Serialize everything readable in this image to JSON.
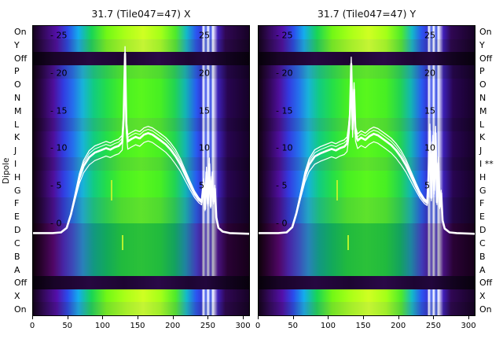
{
  "figure": {
    "dipole_axis_label": "Dipole",
    "left_row_labels": [
      "On",
      "Y",
      "Off",
      "P",
      "O",
      "N",
      "M",
      "L",
      "K",
      "J",
      "I",
      "H",
      "G",
      "F",
      "E",
      "D",
      "C",
      "B",
      "A",
      "Off",
      "X",
      "On"
    ],
    "right_row_labels": [
      "On",
      "Y",
      "Off",
      "P",
      "O",
      "N",
      "M",
      "L",
      "K",
      "J",
      "I **",
      "H",
      "G",
      "F",
      "E",
      "D",
      "C",
      "B",
      "A",
      "Off",
      "X",
      "On"
    ]
  },
  "chart_data": [
    {
      "type": "heatmap",
      "title": "31.7 (Tile047=47) X",
      "x_range": [
        0,
        310
      ],
      "x_ticks": [
        0,
        50,
        100,
        150,
        200,
        250,
        300
      ],
      "y_ticks": [
        {
          "value": 25,
          "left_label": "- 25",
          "right_label": "25"
        },
        {
          "value": 20,
          "left_label": "- 20",
          "right_label": "20"
        },
        {
          "value": 15,
          "left_label": "- 15",
          "right_label": "15"
        },
        {
          "value": 10,
          "left_label": "- 10",
          "right_label": "10"
        },
        {
          "value": 5,
          "left_label": "- 5",
          "right_label": "5"
        },
        {
          "value": 0,
          "left_label": "- 0",
          "right_label": ""
        }
      ],
      "rows": [
        {
          "label": "On",
          "band": "bright",
          "tint": "a"
        },
        {
          "label": "Y",
          "band": "bright",
          "tint": "b"
        },
        {
          "label": "Off",
          "band": "dark",
          "tint": "b"
        },
        {
          "label": "P",
          "band": "main",
          "tint": "b"
        },
        {
          "label": "O",
          "band": "main",
          "tint": "a"
        },
        {
          "label": "N",
          "band": "main",
          "tint": "a"
        },
        {
          "label": "M",
          "band": "main",
          "tint": "a"
        },
        {
          "label": "L",
          "band": "main",
          "tint": "b"
        },
        {
          "label": "K",
          "band": "main",
          "tint": "a"
        },
        {
          "label": "J",
          "band": "main",
          "tint": "a"
        },
        {
          "label": "I",
          "band": "main",
          "tint": "b"
        },
        {
          "label": "H",
          "band": "main",
          "tint": "a"
        },
        {
          "label": "G",
          "band": "main",
          "tint": "a"
        },
        {
          "label": "F",
          "band": "main",
          "tint": "b"
        },
        {
          "label": "E",
          "band": "main",
          "tint": "b"
        },
        {
          "label": "D",
          "band": "main",
          "tint": "c"
        },
        {
          "label": "C",
          "band": "main",
          "tint": "c"
        },
        {
          "label": "B",
          "band": "main",
          "tint": "c"
        },
        {
          "label": "A",
          "band": "main",
          "tint": "c"
        },
        {
          "label": "Off",
          "band": "dark",
          "tint": "b"
        },
        {
          "label": "X",
          "band": "bright",
          "tint": "a"
        },
        {
          "label": "On",
          "band": "bright",
          "tint": "b"
        }
      ],
      "artifacts": [
        {
          "x": 111,
          "top": 0.53,
          "bottom": 0.6
        },
        {
          "x": 126,
          "top": 0.72,
          "bottom": 0.77
        }
      ],
      "line": {
        "color": "#ffffff",
        "points": [
          [
            0,
            -1.3
          ],
          [
            28,
            -1.3
          ],
          [
            40,
            -1.2
          ],
          [
            48,
            -0.6
          ],
          [
            54,
            1.2
          ],
          [
            60,
            3.6
          ],
          [
            66,
            6.0
          ],
          [
            72,
            7.6
          ],
          [
            80,
            8.8
          ],
          [
            88,
            9.4
          ],
          [
            96,
            9.7
          ],
          [
            104,
            10.0
          ],
          [
            110,
            9.8
          ],
          [
            116,
            10.1
          ],
          [
            122,
            10.3
          ],
          [
            127,
            10.8
          ],
          [
            129,
            14.0
          ],
          [
            131,
            22.6
          ],
          [
            133,
            13.0
          ],
          [
            135,
            10.9
          ],
          [
            140,
            11.2
          ],
          [
            146,
            11.5
          ],
          [
            152,
            11.3
          ],
          [
            158,
            11.8
          ],
          [
            164,
            12.0
          ],
          [
            170,
            11.8
          ],
          [
            176,
            11.4
          ],
          [
            182,
            11.0
          ],
          [
            189,
            10.5
          ],
          [
            196,
            9.8
          ],
          [
            203,
            8.9
          ],
          [
            210,
            7.8
          ],
          [
            217,
            6.4
          ],
          [
            224,
            5.0
          ],
          [
            230,
            3.9
          ],
          [
            236,
            3.1
          ],
          [
            240,
            2.8
          ],
          [
            243,
            5.4
          ],
          [
            245,
            1.9
          ],
          [
            247,
            6.8
          ],
          [
            249,
            2.6
          ],
          [
            251,
            7.9
          ],
          [
            253,
            2.3
          ],
          [
            255,
            6.2
          ],
          [
            257,
            2.9
          ],
          [
            259,
            4.6
          ],
          [
            261,
            0.8
          ],
          [
            264,
            -0.6
          ],
          [
            270,
            -1.1
          ],
          [
            280,
            -1.3
          ],
          [
            310,
            -1.4
          ]
        ]
      }
    },
    {
      "type": "heatmap",
      "title": "31.7 (Tile047=47) Y",
      "x_range": [
        0,
        310
      ],
      "x_ticks": [
        0,
        50,
        100,
        150,
        200,
        250,
        300
      ],
      "y_ticks": [
        {
          "value": 25,
          "left_label": "- 25",
          "right_label": "25"
        },
        {
          "value": 20,
          "left_label": "- 20",
          "right_label": "20"
        },
        {
          "value": 15,
          "left_label": "- 15",
          "right_label": "15"
        },
        {
          "value": 10,
          "left_label": "- 10",
          "right_label": "10"
        },
        {
          "value": 5,
          "left_label": "- 5",
          "right_label": "5"
        },
        {
          "value": 0,
          "left_label": "- 0",
          "right_label": ""
        }
      ],
      "rows": [
        {
          "label": "On",
          "band": "bright",
          "tint": "a"
        },
        {
          "label": "Y",
          "band": "bright",
          "tint": "b"
        },
        {
          "label": "Off",
          "band": "dark",
          "tint": "b"
        },
        {
          "label": "P",
          "band": "main",
          "tint": "b"
        },
        {
          "label": "O",
          "band": "main",
          "tint": "a"
        },
        {
          "label": "N",
          "band": "main",
          "tint": "a"
        },
        {
          "label": "M",
          "band": "main",
          "tint": "a"
        },
        {
          "label": "L",
          "band": "main",
          "tint": "b"
        },
        {
          "label": "K",
          "band": "main",
          "tint": "a"
        },
        {
          "label": "J",
          "band": "main",
          "tint": "a"
        },
        {
          "label": "I",
          "band": "main",
          "tint": "b"
        },
        {
          "label": "H",
          "band": "main",
          "tint": "a"
        },
        {
          "label": "G",
          "band": "main",
          "tint": "a"
        },
        {
          "label": "F",
          "band": "main",
          "tint": "b"
        },
        {
          "label": "E",
          "band": "main",
          "tint": "b"
        },
        {
          "label": "D",
          "band": "main",
          "tint": "c"
        },
        {
          "label": "C",
          "band": "main",
          "tint": "c"
        },
        {
          "label": "B",
          "band": "main",
          "tint": "c"
        },
        {
          "label": "A",
          "band": "main",
          "tint": "c"
        },
        {
          "label": "Off",
          "band": "dark",
          "tint": "b"
        },
        {
          "label": "X",
          "band": "bright",
          "tint": "a"
        },
        {
          "label": "On",
          "band": "bright",
          "tint": "b"
        }
      ],
      "artifacts": [
        {
          "x": 111,
          "top": 0.53,
          "bottom": 0.6
        },
        {
          "x": 126,
          "top": 0.72,
          "bottom": 0.77
        }
      ],
      "line": {
        "color": "#ffffff",
        "points": [
          [
            0,
            -1.3
          ],
          [
            28,
            -1.3
          ],
          [
            40,
            -1.2
          ],
          [
            48,
            -0.5
          ],
          [
            54,
            1.4
          ],
          [
            60,
            3.8
          ],
          [
            66,
            6.2
          ],
          [
            72,
            7.8
          ],
          [
            80,
            8.9
          ],
          [
            88,
            9.3
          ],
          [
            96,
            9.6
          ],
          [
            104,
            9.9
          ],
          [
            110,
            9.7
          ],
          [
            116,
            10.0
          ],
          [
            122,
            10.2
          ],
          [
            126,
            10.6
          ],
          [
            128,
            12.0
          ],
          [
            130,
            14.2
          ],
          [
            132,
            21.2
          ],
          [
            134,
            12.5
          ],
          [
            136,
            17.8
          ],
          [
            138,
            12.0
          ],
          [
            141,
            11.0
          ],
          [
            146,
            11.4
          ],
          [
            152,
            11.1
          ],
          [
            158,
            11.6
          ],
          [
            164,
            11.9
          ],
          [
            170,
            11.7
          ],
          [
            176,
            11.3
          ],
          [
            182,
            10.9
          ],
          [
            189,
            10.4
          ],
          [
            196,
            9.7
          ],
          [
            203,
            8.8
          ],
          [
            210,
            7.7
          ],
          [
            217,
            6.3
          ],
          [
            224,
            4.9
          ],
          [
            230,
            3.8
          ],
          [
            236,
            3.0
          ],
          [
            240,
            2.7
          ],
          [
            242,
            6.0
          ],
          [
            244,
            12.3
          ],
          [
            246,
            3.4
          ],
          [
            248,
            10.8
          ],
          [
            250,
            4.4
          ],
          [
            252,
            12.0
          ],
          [
            254,
            2.8
          ],
          [
            256,
            8.0
          ],
          [
            258,
            2.2
          ],
          [
            260,
            4.0
          ],
          [
            262,
            0.4
          ],
          [
            265,
            -0.7
          ],
          [
            272,
            -1.2
          ],
          [
            282,
            -1.3
          ],
          [
            310,
            -1.4
          ]
        ]
      }
    }
  ]
}
